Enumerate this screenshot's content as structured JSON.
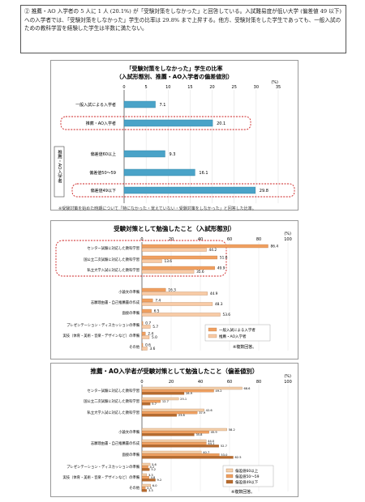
{
  "intro": {
    "text": "② 推薦・AO 入学者の 5 人に 1 人 (20.1%) が「受験対策をしなかった」と回答している。入試難易度が低い大学 (偏差値 49 以下) への入学者では、「受験対策をしなかった」学生の比率は 29.8% まで上昇する。他方、受験対策をした学生であっても、一般入試のための教科学習を経験した学生は半数に満たない。"
  },
  "colors": {
    "general": "#e8a46c",
    "ao": "#4aa3c8",
    "dev60": "#f4d1ad",
    "dev50": "#f0a060",
    "dev49": "#b66a2d",
    "highlight": "#cc2222"
  },
  "chart_data": [
    {
      "type": "bar",
      "title": "「受験対策をしなかった」学生の比率\n（入試形態別、推薦・AO入学者の偏差値別）",
      "title_line1": "「受験対策をしなかった」学生の比率",
      "title_line2": "（入試形態別、推薦・AO入学者の偏差値別）",
      "unit": "(%)",
      "xlim": [
        0,
        35
      ],
      "ticks": [
        "0",
        "5",
        "10",
        "15",
        "20",
        "25",
        "30",
        "35"
      ],
      "categories": [
        "一般入試による入学者",
        "推薦・AO入学者",
        "偏差値60以上",
        "偏差値50～59",
        "偏差値49以下"
      ],
      "values": [
        7.1,
        20.1,
        9.3,
        16.1,
        29.8
      ],
      "value_labels": [
        "7.1",
        "20.1",
        "9.3",
        "16.1",
        "29.8"
      ],
      "group_label": "推薦・AO入学者",
      "note": "※受験対策を始めた時期について「特になかった・覚えていない・受験対策をしなかった」と回答した比率。"
    },
    {
      "type": "bar",
      "title": "受験対策として勉強したこと（入試形態別）",
      "unit": "(%)",
      "xlim": [
        0,
        100
      ],
      "ticks": [
        "0",
        "20",
        "40",
        "60",
        "80",
        "100"
      ],
      "categories": [
        "センター試験に対応した教科学習",
        "国公立二次試験に対応した教科学習",
        "私立大学入試に対応した教科学習",
        "小論文の準備",
        "志願理由書・自己推薦書の作成",
        "面接の準備",
        "プレゼンテーション・ディスカッションの準備",
        "実技（体育・美術・音楽・デザインなど）の準備",
        "その他"
      ],
      "series": [
        {
          "name": "一般入試による入学者",
          "values": [
            86.4,
            51.6,
            49.9,
            16.3,
            7.4,
            6.5,
            0.7,
            2.4,
            0.6
          ],
          "labels": [
            "86.4",
            "51.6",
            "49.9",
            "16.3",
            "7.4",
            "6.5",
            "0.7",
            "2.4",
            "0.6"
          ]
        },
        {
          "name": "推薦・AO入学者",
          "values": [
            44.2,
            13.6,
            35.6,
            44.9,
            48.3,
            53.6,
            5.7,
            5.0,
            3.6
          ],
          "labels": [
            "44.2",
            "13.6",
            "35.6",
            "44.9",
            "48.3",
            "53.6",
            "5.7",
            "5.0",
            "3.6"
          ]
        }
      ],
      "note": "※複数回答。"
    },
    {
      "type": "bar",
      "title": "推薦・AO入学者が受験対策として勉強したこと（偏差値別）",
      "unit": "(%)",
      "xlim": [
        0,
        100
      ],
      "ticks": [
        "0",
        "20",
        "40",
        "60",
        "80",
        "100"
      ],
      "categories": [
        "センター試験に対応した教科学習",
        "国公立二次試験に対応した教科学習",
        "私立大学入試に対応した教科学習",
        "小論文の準備",
        "志願理由書・自己推薦書の作成",
        "面接の準備",
        "プレゼンテーション・ディスカッションの準備",
        "実技（体育・美術・音楽・デザインなど）の準備",
        "その他"
      ],
      "series": [
        {
          "name": "偏差値60以上",
          "values": [
            68.6,
            25.1,
            42.6,
            58.2,
            44.0,
            40.7,
            5.6,
            3.3,
            6.0
          ],
          "labels": [
            "68.6",
            "25.1",
            "42.6",
            "58.2",
            "44.0",
            "40.7",
            "5.6",
            "3.3",
            "6.0"
          ]
        },
        {
          "name": "偏差値50～59",
          "values": [
            49.2,
            12.7,
            37.9,
            45.9,
            44.1,
            53.0,
            4.2,
            4.8,
            2.3
          ],
          "labels": [
            "49.2",
            "12.7",
            "37.9",
            "45.9",
            "44.1",
            "53.0",
            "4.2",
            "4.8",
            "2.3"
          ]
        },
        {
          "name": "偏差値49以下",
          "values": [
            28.9,
            5.7,
            23.8,
            35.8,
            52.7,
            62.5,
            5.2,
            9.2,
            3.3
          ],
          "labels": [
            "28.9",
            "5.7",
            "23.8",
            "35.8",
            "52.7",
            "62.5",
            "5.2",
            "9.2",
            "3.3"
          ]
        }
      ],
      "note": "※複数回答。"
    }
  ]
}
